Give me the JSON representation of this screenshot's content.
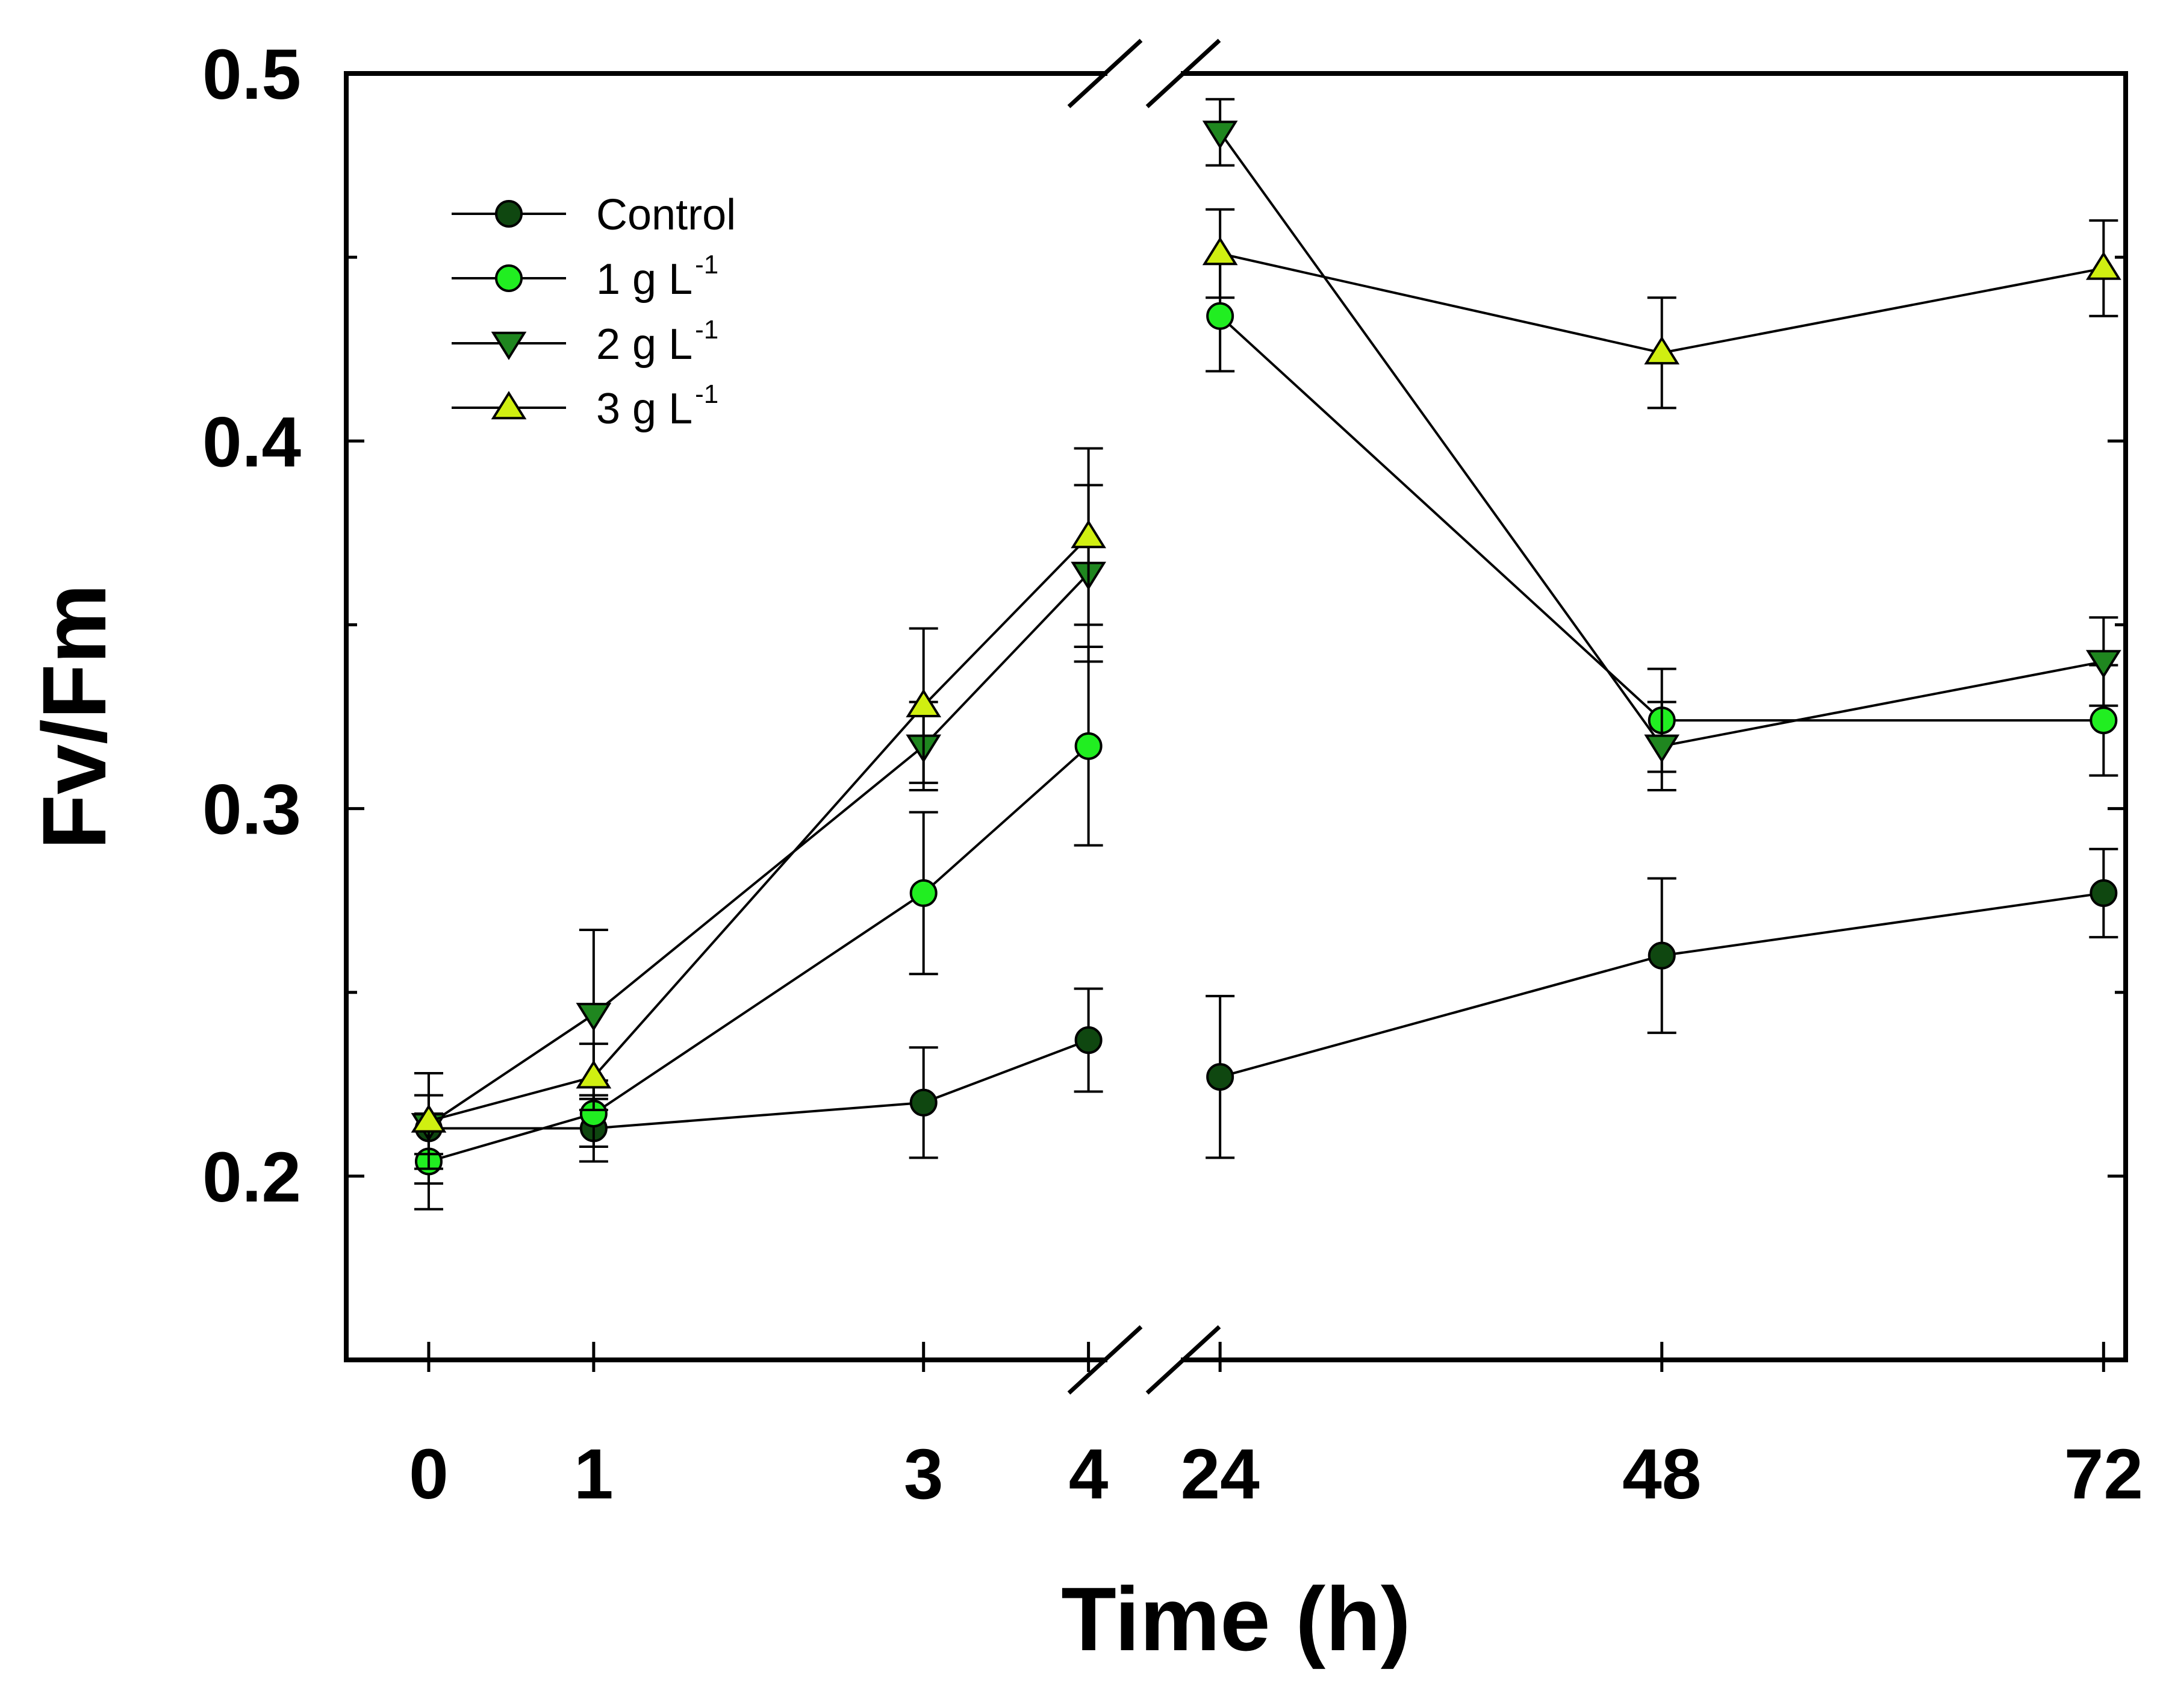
{
  "chart_data": {
    "type": "line",
    "title": "",
    "xlabel": "Time (h)",
    "ylabel": "Fv/Fm",
    "x": [
      0,
      1,
      3,
      4,
      24,
      48,
      72
    ],
    "x_tick_labels": [
      "0",
      "1",
      "3",
      "4",
      "24",
      "48",
      "72"
    ],
    "x_segments": [
      [
        0,
        4
      ],
      [
        24,
        72
      ]
    ],
    "y_ticks": [
      0.2,
      0.3,
      0.4,
      0.5
    ],
    "y_tick_labels": [
      "0.2",
      "0.3",
      "0.4",
      "0.5"
    ],
    "ylim": [
      0.15,
      0.5
    ],
    "grid": false,
    "legend_position": "top-left",
    "series": [
      {
        "name": "Control",
        "superscript": "",
        "marker": "circle",
        "color": "#0f4710",
        "values": [
          0.213,
          0.213,
          0.22,
          0.237,
          0.227,
          0.26,
          0.277
        ],
        "errors": [
          0.015,
          0.009,
          0.015,
          0.014,
          0.022,
          0.021,
          0.012
        ]
      },
      {
        "name": "1 g L",
        "superscript": "-1",
        "marker": "circle",
        "color": "#21ee21",
        "values": [
          0.204,
          0.217,
          0.277,
          0.317,
          0.434,
          0.324,
          0.324
        ],
        "errors": [
          0.013,
          0.009,
          0.022,
          0.027,
          0.015,
          0.014,
          0.015
        ]
      },
      {
        "name": "2 g L",
        "superscript": "-1",
        "marker": "triangle-down",
        "color": "#1f861f",
        "values": [
          0.214,
          0.244,
          0.317,
          0.364,
          0.484,
          0.317,
          0.34
        ],
        "errors": [
          0.008,
          0.023,
          0.012,
          0.024,
          0.009,
          0.012,
          0.012
        ]
      },
      {
        "name": "3 g L",
        "superscript": "-1",
        "marker": "triangle-up",
        "color": "#d0ef11",
        "values": [
          0.215,
          0.227,
          0.328,
          0.374,
          0.451,
          0.424,
          0.447
        ],
        "errors": [
          0.013,
          0.009,
          0.021,
          0.024,
          0.012,
          0.015,
          0.013
        ]
      }
    ]
  }
}
